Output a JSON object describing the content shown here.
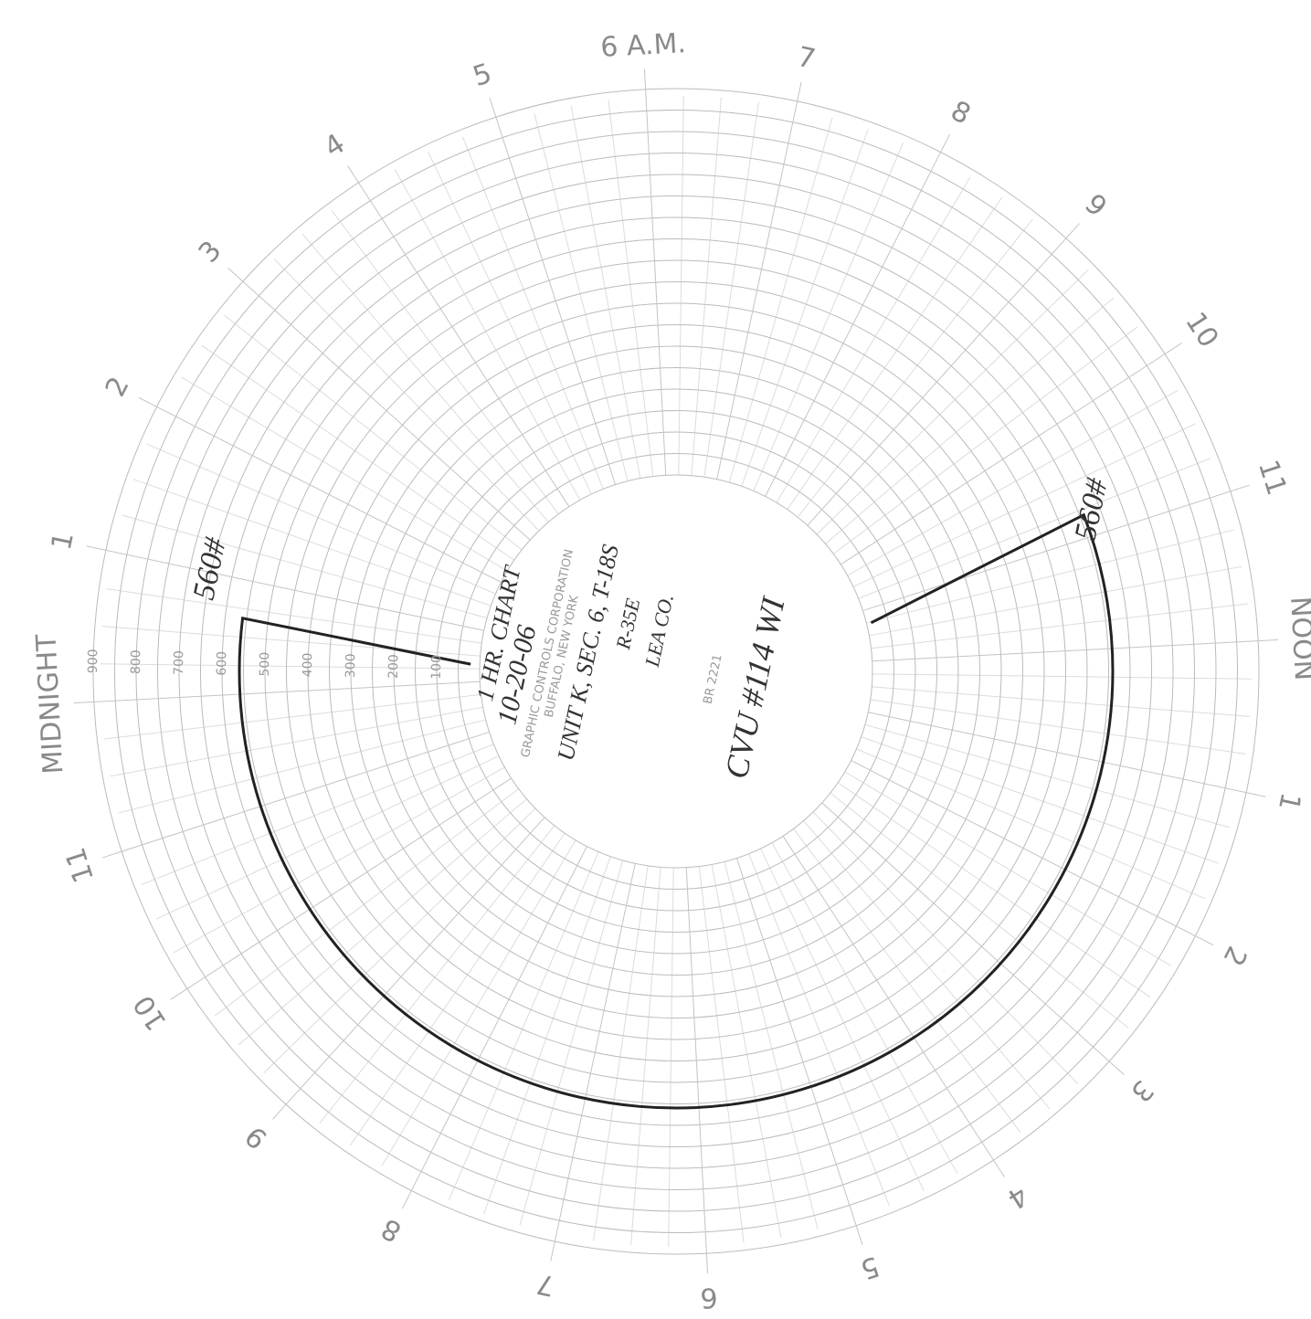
{
  "chart_form": {
    "hour_labels": [
      "MIDNIGHT",
      "1",
      "2",
      "3",
      "4",
      "5",
      "6 A.M.",
      "7",
      "8",
      "9",
      "10",
      "11",
      "NOON",
      "1",
      "2",
      "3",
      "4",
      "5",
      "6",
      "7",
      "8",
      "9",
      "10",
      "11"
    ],
    "scale_labels": [
      100,
      200,
      300,
      400,
      500,
      600,
      700,
      800,
      900
    ],
    "maker": "GRAPHIC CONTROLS CORPORATION",
    "city": "BUFFALO, NEW YORK",
    "form_number": "BR 2221"
  },
  "handwriting": {
    "chart": "1 HR. CHART",
    "date": "10-20-06",
    "location": "UNIT K, SEC. 6, T-18S",
    "range": "R-35E",
    "county": "LEA CO.",
    "well": "CVU #114 WI",
    "reading_start": "560#",
    "reading_end": "560#"
  }
}
